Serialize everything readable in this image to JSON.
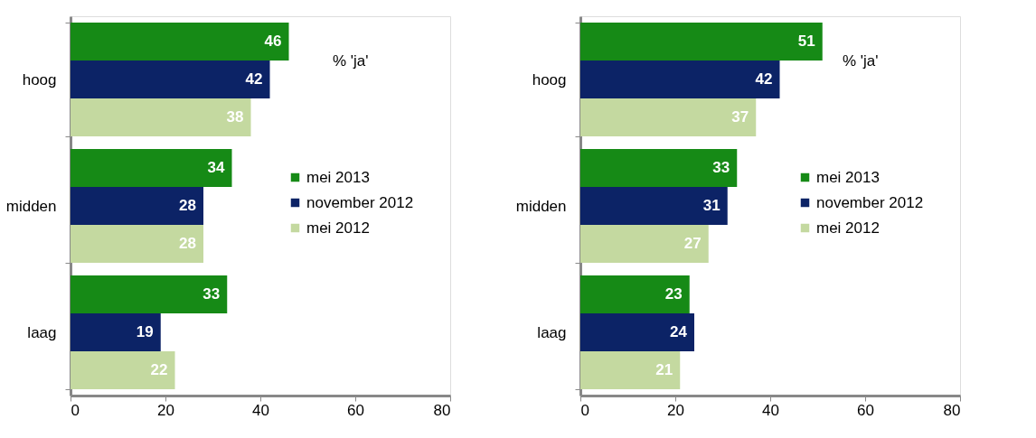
{
  "chart_data": [
    {
      "type": "bar",
      "orientation": "horizontal",
      "categories": [
        "hoog",
        "midden",
        "laag"
      ],
      "series": [
        {
          "name": "mei 2013",
          "color": "#168a16",
          "values": [
            46,
            34,
            33
          ]
        },
        {
          "name": "november 2012",
          "color": "#0c2366",
          "values": [
            42,
            28,
            19
          ]
        },
        {
          "name": "mei 2012",
          "color": "#c4d9a0",
          "values": [
            38,
            28,
            22
          ]
        }
      ],
      "xlim": [
        0,
        80
      ],
      "xticks": [
        0,
        20,
        40,
        60,
        80
      ],
      "data_labels": true,
      "legend": "right",
      "annotations": [
        "% 'ja'"
      ]
    },
    {
      "type": "bar",
      "orientation": "horizontal",
      "categories": [
        "hoog",
        "midden",
        "laag"
      ],
      "series": [
        {
          "name": "mei 2013",
          "color": "#168a16",
          "values": [
            51,
            33,
            23
          ]
        },
        {
          "name": "november 2012",
          "color": "#0c2366",
          "values": [
            42,
            31,
            24
          ]
        },
        {
          "name": "mei 2012",
          "color": "#c4d9a0",
          "values": [
            37,
            27,
            21
          ]
        }
      ],
      "xlim": [
        0,
        80
      ],
      "xticks": [
        0,
        20,
        40,
        60,
        80
      ],
      "data_labels": true,
      "legend": "right",
      "annotations": [
        "% 'ja'"
      ]
    }
  ]
}
